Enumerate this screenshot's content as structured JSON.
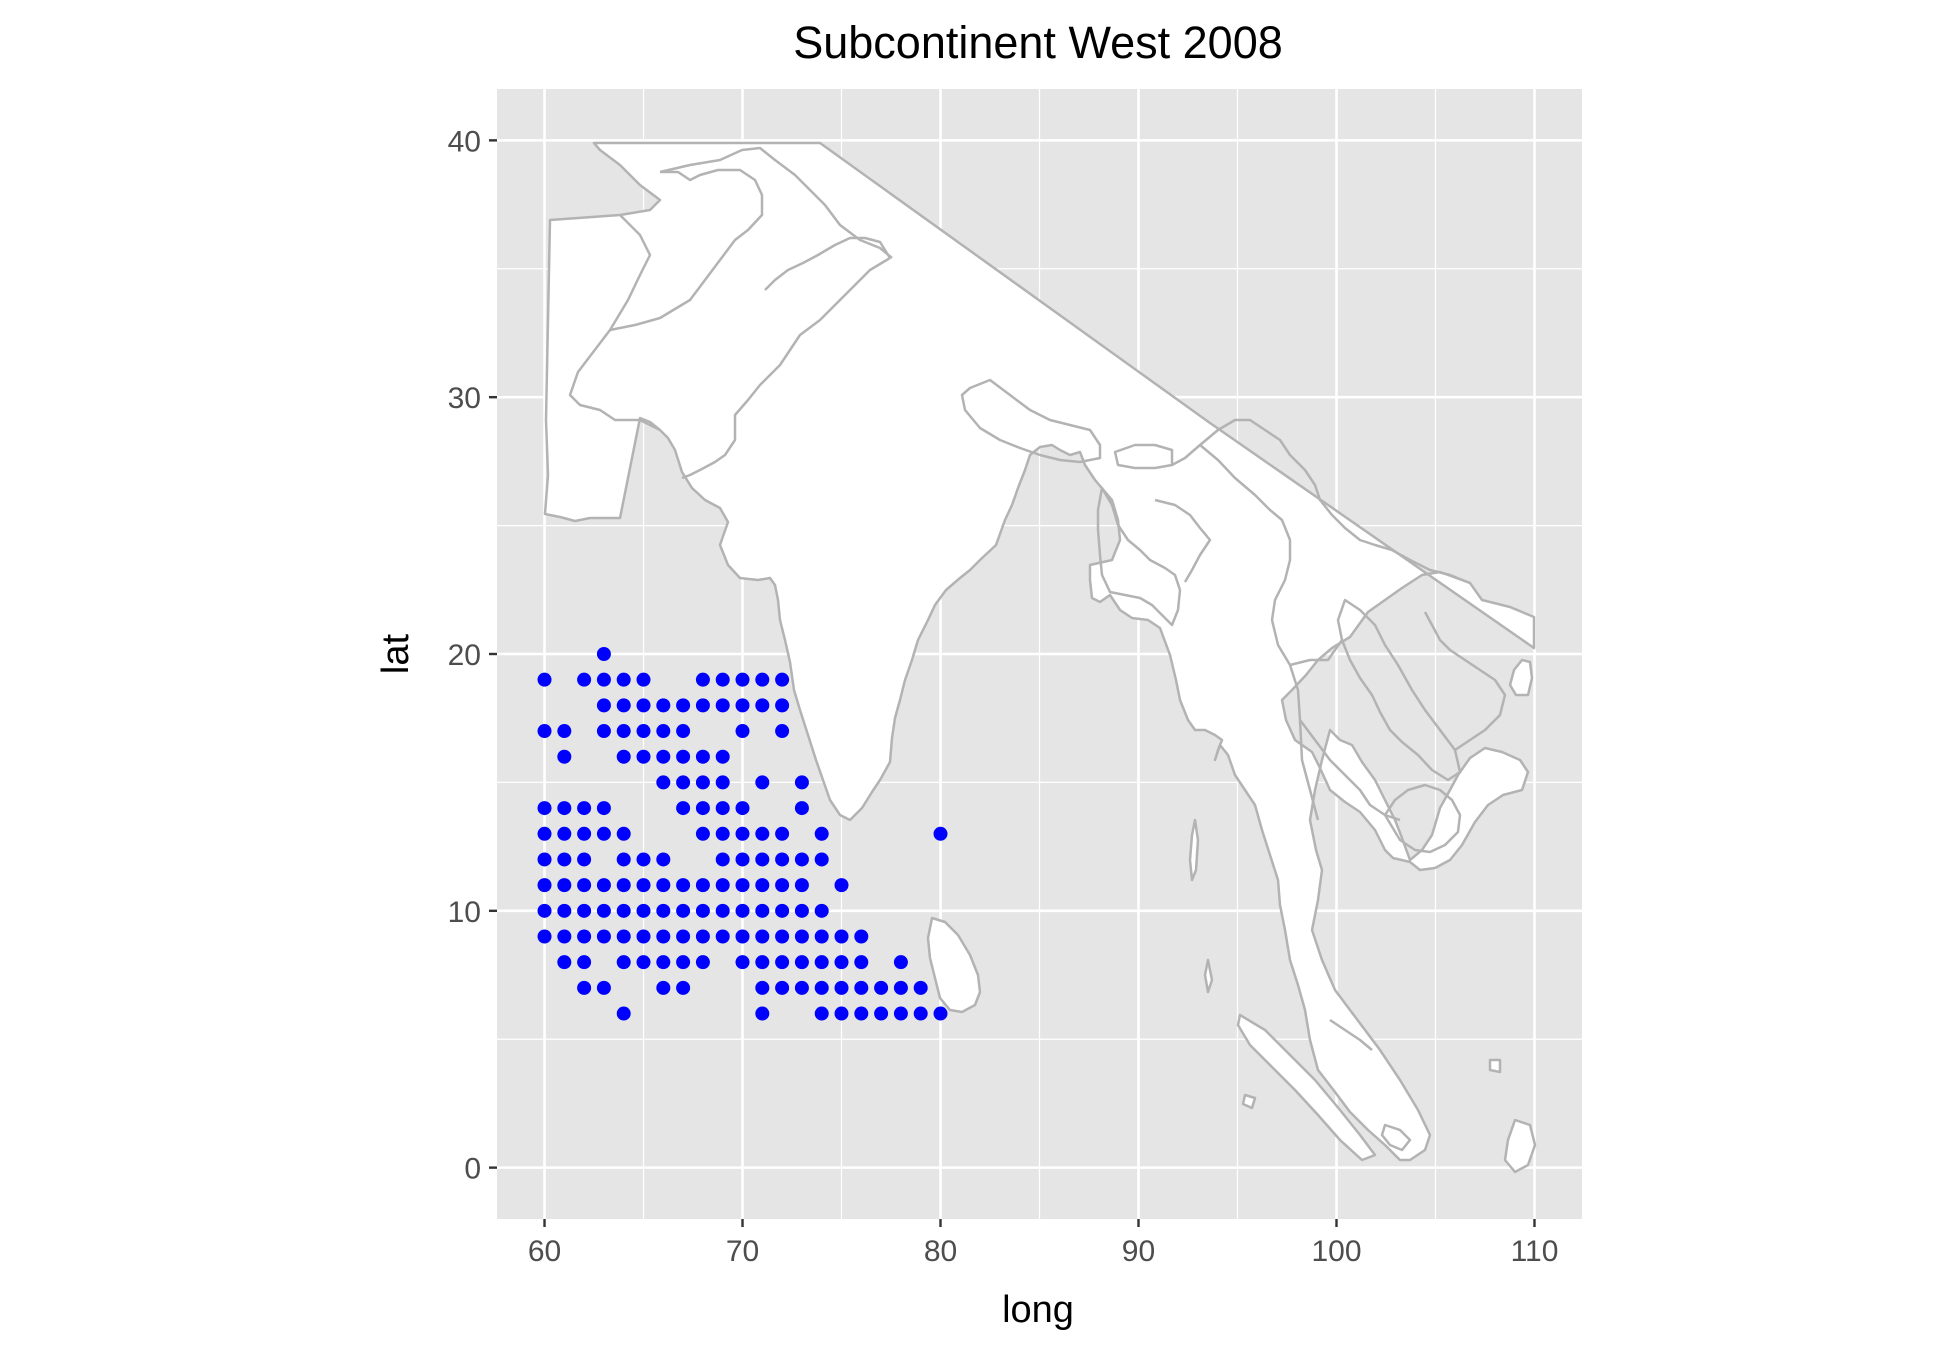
{
  "chart_data": {
    "type": "scatter",
    "title": "Subcontinent West 2008",
    "xlabel": "long",
    "ylabel": "lat",
    "xlim": [
      57.6,
      112.4
    ],
    "ylim": [
      -2.0,
      42.0
    ],
    "xticks": [
      60,
      70,
      80,
      90,
      100,
      110
    ],
    "yticks": [
      0,
      10,
      20,
      30,
      40
    ],
    "grid": true,
    "legend": "none",
    "colors": {
      "panel": "#e5e5e5",
      "grid": "#ffffff",
      "land": "#ffffff",
      "border": "#b3b3b3",
      "points": "#0000ff"
    },
    "series": [
      {
        "points": [
          [
            63,
            20
          ],
          [
            60,
            19
          ],
          [
            62,
            19
          ],
          [
            63,
            19
          ],
          [
            64,
            19
          ],
          [
            65,
            19
          ],
          [
            68,
            19
          ],
          [
            69,
            19
          ],
          [
            70,
            19
          ],
          [
            71,
            19
          ],
          [
            72,
            19
          ],
          [
            63,
            18
          ],
          [
            64,
            18
          ],
          [
            65,
            18
          ],
          [
            66,
            18
          ],
          [
            67,
            18
          ],
          [
            68,
            18
          ],
          [
            69,
            18
          ],
          [
            70,
            18
          ],
          [
            71,
            18
          ],
          [
            72,
            18
          ],
          [
            60,
            17
          ],
          [
            61,
            17
          ],
          [
            63,
            17
          ],
          [
            64,
            17
          ],
          [
            65,
            17
          ],
          [
            66,
            17
          ],
          [
            67,
            17
          ],
          [
            70,
            17
          ],
          [
            72,
            17
          ],
          [
            61,
            16
          ],
          [
            64,
            16
          ],
          [
            65,
            16
          ],
          [
            66,
            16
          ],
          [
            67,
            16
          ],
          [
            68,
            16
          ],
          [
            69,
            16
          ],
          [
            66,
            15
          ],
          [
            67,
            15
          ],
          [
            68,
            15
          ],
          [
            69,
            15
          ],
          [
            71,
            15
          ],
          [
            73,
            15
          ],
          [
            60,
            14
          ],
          [
            61,
            14
          ],
          [
            62,
            14
          ],
          [
            63,
            14
          ],
          [
            67,
            14
          ],
          [
            68,
            14
          ],
          [
            69,
            14
          ],
          [
            70,
            14
          ],
          [
            73,
            14
          ],
          [
            60,
            13
          ],
          [
            61,
            13
          ],
          [
            62,
            13
          ],
          [
            63,
            13
          ],
          [
            64,
            13
          ],
          [
            68,
            13
          ],
          [
            69,
            13
          ],
          [
            70,
            13
          ],
          [
            71,
            13
          ],
          [
            72,
            13
          ],
          [
            74,
            13
          ],
          [
            80,
            13
          ],
          [
            60,
            12
          ],
          [
            61,
            12
          ],
          [
            62,
            12
          ],
          [
            64,
            12
          ],
          [
            65,
            12
          ],
          [
            66,
            12
          ],
          [
            69,
            12
          ],
          [
            70,
            12
          ],
          [
            71,
            12
          ],
          [
            72,
            12
          ],
          [
            73,
            12
          ],
          [
            74,
            12
          ],
          [
            60,
            11
          ],
          [
            61,
            11
          ],
          [
            62,
            11
          ],
          [
            63,
            11
          ],
          [
            64,
            11
          ],
          [
            65,
            11
          ],
          [
            66,
            11
          ],
          [
            67,
            11
          ],
          [
            68,
            11
          ],
          [
            69,
            11
          ],
          [
            70,
            11
          ],
          [
            71,
            11
          ],
          [
            72,
            11
          ],
          [
            73,
            11
          ],
          [
            75,
            11
          ],
          [
            60,
            10
          ],
          [
            61,
            10
          ],
          [
            62,
            10
          ],
          [
            63,
            10
          ],
          [
            64,
            10
          ],
          [
            65,
            10
          ],
          [
            66,
            10
          ],
          [
            67,
            10
          ],
          [
            68,
            10
          ],
          [
            69,
            10
          ],
          [
            70,
            10
          ],
          [
            71,
            10
          ],
          [
            72,
            10
          ],
          [
            73,
            10
          ],
          [
            74,
            10
          ],
          [
            60,
            9
          ],
          [
            61,
            9
          ],
          [
            62,
            9
          ],
          [
            63,
            9
          ],
          [
            64,
            9
          ],
          [
            65,
            9
          ],
          [
            66,
            9
          ],
          [
            67,
            9
          ],
          [
            68,
            9
          ],
          [
            69,
            9
          ],
          [
            70,
            9
          ],
          [
            71,
            9
          ],
          [
            72,
            9
          ],
          [
            73,
            9
          ],
          [
            74,
            9
          ],
          [
            75,
            9
          ],
          [
            76,
            9
          ],
          [
            61,
            8
          ],
          [
            62,
            8
          ],
          [
            64,
            8
          ],
          [
            65,
            8
          ],
          [
            66,
            8
          ],
          [
            67,
            8
          ],
          [
            68,
            8
          ],
          [
            70,
            8
          ],
          [
            71,
            8
          ],
          [
            72,
            8
          ],
          [
            73,
            8
          ],
          [
            74,
            8
          ],
          [
            75,
            8
          ],
          [
            76,
            8
          ],
          [
            78,
            8
          ],
          [
            62,
            7
          ],
          [
            63,
            7
          ],
          [
            66,
            7
          ],
          [
            67,
            7
          ],
          [
            71,
            7
          ],
          [
            72,
            7
          ],
          [
            73,
            7
          ],
          [
            74,
            7
          ],
          [
            75,
            7
          ],
          [
            76,
            7
          ],
          [
            77,
            7
          ],
          [
            78,
            7
          ],
          [
            79,
            7
          ],
          [
            64,
            6
          ],
          [
            71,
            6
          ],
          [
            74,
            6
          ],
          [
            75,
            6
          ],
          [
            76,
            6
          ],
          [
            77,
            6
          ],
          [
            78,
            6
          ],
          [
            79,
            6
          ],
          [
            80,
            6
          ]
        ]
      }
    ]
  }
}
